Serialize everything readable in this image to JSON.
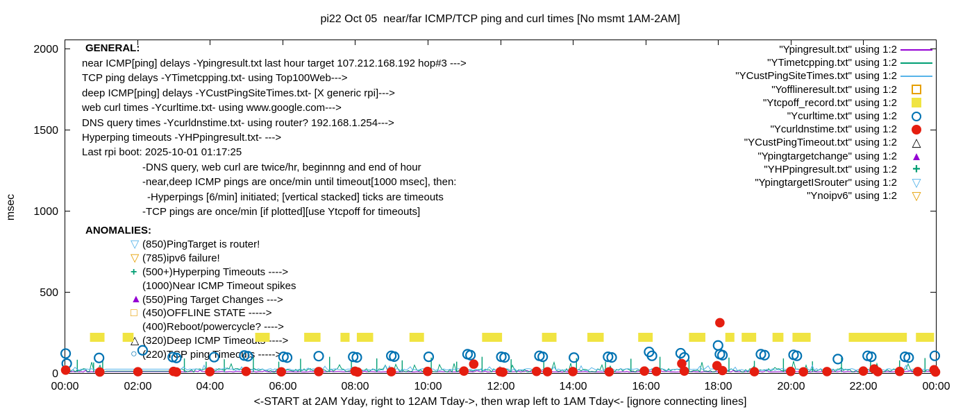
{
  "title": "pi22 Oct 05  near/far ICMP/TCP ping and curl times [No msmt 1AM-2AM]",
  "axes": {
    "ylabel": "msec",
    "xlabel": "<-START at 2AM Yday, right to 12AM Tday->, then wrap left to 1AM Tday<- [ignore connecting lines]",
    "x_ticks": [
      "00:00",
      "02:00",
      "04:00",
      "06:00",
      "08:00",
      "10:00",
      "12:00",
      "14:00",
      "16:00",
      "18:00",
      "20:00",
      "22:00",
      "00:00"
    ],
    "y_ticks": [
      "0",
      "500",
      "1000",
      "1500",
      "2000"
    ]
  },
  "general": {
    "header": "GENERAL:",
    "lines": [
      {
        "text": "near ICMP[ping] delays -Ypingresult.txt last hour target 107.212.168.192 hop#3 --->",
        "indent": 0
      },
      {
        "text": "TCP ping delays -YTimetcpping.txt- using Top100Web--->",
        "indent": 0
      },
      {
        "text": "deep ICMP[ping] delays -YCustPingSiteTimes.txt- [X generic rpi]--->",
        "indent": 0
      },
      {
        "text": "web curl times -Ycurltime.txt- using www.google.com--->",
        "indent": 0
      },
      {
        "text": "DNS query times -Ycurldnstime.txt- using router? 192.168.1.254--->",
        "indent": 0
      },
      {
        "text": "Hyperping timeouts -YHPpingresult.txt- --->",
        "indent": 0
      },
      {
        "text": "Last rpi boot: 2025-10-01 01:17:25",
        "indent": 0
      },
      {
        "text": "-DNS query, web curl are twice/hr, beginnng and end of hour",
        "indent": 1
      },
      {
        "text": "-near,deep ICMP pings are once/min until timeout[1000 msec], then:",
        "indent": 1
      },
      {
        "text": "-Hyperpings [6/min] initiated; [vertical stacked] ticks are timeouts",
        "indent": 2
      },
      {
        "text": "-TCP pings are once/min [if plotted][use Ytcpoff for timeouts]",
        "indent": 1
      }
    ]
  },
  "anomalies": {
    "header": "ANOMALIES:",
    "rows": [
      {
        "glyph": "▽",
        "glyph_name": "tridown-open-icon",
        "color": "#56b4e9",
        "cls": "s-glyph",
        "text": "(850)PingTarget is router!"
      },
      {
        "glyph": "▽",
        "glyph_name": "tridown-open-icon",
        "color": "#e69f00",
        "cls": "s-glyph",
        "text": "(785)ipv6 failure!"
      },
      {
        "glyph": "+",
        "glyph_name": "cross-icon",
        "color": "#009e73",
        "cls": "s-cross",
        "text": "(500+)Hyperping Timeouts ---->"
      },
      {
        "glyph": "",
        "glyph_name": "",
        "color": "",
        "cls": "s-glyph",
        "text": "(1000)Near ICMP Timeout spikes"
      },
      {
        "glyph": "▲",
        "glyph_name": "triangle-filled-icon",
        "color": "#9400d3",
        "cls": "s-glyph",
        "text": "(550)Ping Target Changes --->"
      },
      {
        "glyph": "□",
        "glyph_name": "square-open-icon",
        "color": "#e69f00",
        "cls": "s-glyph",
        "text": "(450)OFFLINE STATE ----->"
      },
      {
        "glyph": "",
        "glyph_name": "",
        "color": "",
        "cls": "s-glyph",
        "text": "(400)Reboot/powercycle? ---->"
      },
      {
        "glyph": "△",
        "glyph_name": "triangle-open-icon",
        "color": "#000000",
        "cls": "s-glyph",
        "text": "(320)Deep ICMP Timeouts ---->"
      },
      {
        "glyph": "○",
        "glyph_name": "circle-open-icon",
        "color": "#0072b2",
        "cls": "s-glyph",
        "text": "(220)TCP ping Timeouts ----->"
      }
    ]
  },
  "legend": {
    "items": [
      {
        "label": "\"Ypingresult.txt\" using 1:2",
        "sample": "line",
        "color": "#9400d3"
      },
      {
        "label": "\"YTimetcpping.txt\" using 1:2",
        "sample": "line",
        "color": "#009e73"
      },
      {
        "label": "\"YCustPingSiteTimes.txt\" using 1:2",
        "sample": "line",
        "color": "#56b4e9"
      },
      {
        "label": "\"Yofflineresult.txt\" using 1:2",
        "sample": "square-open",
        "color": "#e69f00"
      },
      {
        "label": "\"Ytcpoff_record.txt\" using 1:2",
        "sample": "square-filled",
        "color": "#f0e442"
      },
      {
        "label": "\"Ycurltime.txt\" using 1:2",
        "sample": "circle-open",
        "color": "#0072b2"
      },
      {
        "label": "\"Ycurldnstime.txt\" using 1:2",
        "sample": "circle-filled",
        "color": "#e51e10"
      },
      {
        "label": "\"YCustPingTimeout.txt\" using 1:2",
        "sample": "triangle-open",
        "color": "#000000"
      },
      {
        "label": "\"Ypingtargetchange\" using 1:2",
        "sample": "triangle-filled",
        "color": "#9400d3"
      },
      {
        "label": "\"YHPpingresult.txt\" using 1:2",
        "sample": "cross",
        "color": "#009e73"
      },
      {
        "label": "\"YpingtargetISrouter\" using 1:2",
        "sample": "tridown-open",
        "color": "#56b4e9"
      },
      {
        "label": "\"Ynoipv6\" using 1:2",
        "sample": "tridown-open",
        "color": "#e69f00"
      }
    ]
  },
  "chart_data": {
    "type": "line",
    "title": "pi22 Oct 05  near/far ICMP/TCP ping and curl times [No msmt 1AM-2AM]",
    "xlabel": "<-START at 2AM Yday, right to 12AM Tday->, then wrap left to 1AM Tday<- [ignore connecting lines]",
    "ylabel": "msec",
    "x_unit": "hours-of-day",
    "xlim": [
      0,
      24
    ],
    "ylim": [
      0,
      2055
    ],
    "x_tick_hours": [
      0,
      2,
      4,
      6,
      8,
      10,
      12,
      14,
      16,
      18,
      20,
      22,
      24
    ],
    "y_tick_values": [
      0,
      500,
      1000,
      1500,
      2000
    ],
    "grid": false,
    "legend_position": "top-right-inside",
    "gap_hours": [
      1.1,
      3.05
    ],
    "series": [
      {
        "name": "Ypingresult.txt",
        "type": "noisy-line",
        "color": "#9400d3",
        "band_msec": [
          6,
          15
        ],
        "gap_value": 9,
        "seed": 42
      },
      {
        "name": "YTimetcpping.txt",
        "type": "noisy-line",
        "color": "#009e73",
        "band_msec": [
          5,
          55
        ],
        "gap_value": 12,
        "seed": 7,
        "spike_points": [
          [
            0.35,
            82
          ],
          [
            0.8,
            65
          ],
          [
            1.05,
            75
          ],
          [
            3.3,
            90
          ],
          [
            3.9,
            70
          ],
          [
            4.4,
            85
          ],
          [
            5.2,
            95
          ],
          [
            5.9,
            70
          ],
          [
            6.5,
            88
          ],
          [
            7.3,
            100
          ],
          [
            7.9,
            72
          ],
          [
            8.6,
            90
          ],
          [
            9.3,
            78
          ],
          [
            10.1,
            95
          ],
          [
            10.8,
            70
          ],
          [
            11.5,
            100
          ],
          [
            12.3,
            85
          ],
          [
            13.2,
            75
          ],
          [
            14.1,
            92
          ],
          [
            14.9,
            70
          ],
          [
            15.6,
            88
          ],
          [
            16.4,
            100
          ],
          [
            17.2,
            80
          ],
          [
            18.3,
            95
          ],
          [
            19.0,
            75
          ],
          [
            19.8,
            90
          ],
          [
            20.6,
            72
          ],
          [
            21.4,
            95
          ],
          [
            22.2,
            85
          ],
          [
            23.0,
            78
          ],
          [
            23.7,
            92
          ]
        ]
      },
      {
        "name": "YCustPingSiteTimes.txt",
        "type": "noisy-line",
        "color": "#56b4e9",
        "band_msec": [
          15,
          42
        ],
        "gap_value": 24,
        "seed": 99
      },
      {
        "name": "Yofflineresult.txt",
        "type": "points",
        "marker": "square-open",
        "color": "#e69f00",
        "points": []
      },
      {
        "name": "Ytcpoff_record.txt",
        "type": "segments",
        "marker": "square-filled",
        "color": "#f0e442",
        "value_msec": 220,
        "segments_hours": [
          [
            0.7,
            1.1
          ],
          [
            1.6,
            1.9
          ],
          [
            5.25,
            5.65
          ],
          [
            6.6,
            7.05
          ],
          [
            7.6,
            7.85
          ],
          [
            8.05,
            8.5
          ],
          [
            9.5,
            9.9
          ],
          [
            11.5,
            12.05
          ],
          [
            13.15,
            13.55
          ],
          [
            14.4,
            14.85
          ],
          [
            15.8,
            16.2
          ],
          [
            17.2,
            17.65
          ],
          [
            18.2,
            18.45
          ],
          [
            18.65,
            19.05
          ],
          [
            19.5,
            19.8
          ],
          [
            20.05,
            20.55
          ],
          [
            21.6,
            23.2
          ],
          [
            23.45,
            23.95
          ]
        ]
      },
      {
        "name": "Ycurltime.txt",
        "type": "points",
        "marker": "circle-open",
        "color": "#0072b2",
        "points": [
          [
            0.03,
            120
          ],
          [
            0.06,
            58
          ],
          [
            0.95,
            93
          ],
          [
            2.15,
            140
          ],
          [
            2.98,
            98
          ],
          [
            3.08,
            93
          ],
          [
            4.12,
            98
          ],
          [
            4.95,
            108
          ],
          [
            5.05,
            103
          ],
          [
            6.03,
            100
          ],
          [
            6.13,
            95
          ],
          [
            7.0,
            104
          ],
          [
            7.95,
            100
          ],
          [
            8.05,
            96
          ],
          [
            9.0,
            106
          ],
          [
            9.08,
            101
          ],
          [
            10.03,
            100
          ],
          [
            11.1,
            116
          ],
          [
            11.18,
            110
          ],
          [
            12.03,
            100
          ],
          [
            12.12,
            96
          ],
          [
            13.08,
            106
          ],
          [
            13.17,
            100
          ],
          [
            14.03,
            95
          ],
          [
            14.97,
            100
          ],
          [
            15.07,
            96
          ],
          [
            16.1,
            130
          ],
          [
            16.18,
            106
          ],
          [
            16.97,
            122
          ],
          [
            17.07,
            96
          ],
          [
            18.0,
            170
          ],
          [
            18.05,
            116
          ],
          [
            18.12,
            110
          ],
          [
            19.18,
            116
          ],
          [
            19.28,
            110
          ],
          [
            20.08,
            112
          ],
          [
            20.17,
            106
          ],
          [
            21.3,
            86
          ],
          [
            22.12,
            106
          ],
          [
            22.22,
            100
          ],
          [
            23.15,
            100
          ],
          [
            23.25,
            95
          ],
          [
            23.97,
            106
          ]
        ]
      },
      {
        "name": "Ycurldnstime.txt",
        "type": "points",
        "marker": "circle-filled",
        "color": "#e51e10",
        "points": [
          [
            0.03,
            18
          ],
          [
            0.97,
            6
          ],
          [
            2.02,
            8
          ],
          [
            3.0,
            10
          ],
          [
            3.08,
            6
          ],
          [
            4.0,
            8
          ],
          [
            5.0,
            10
          ],
          [
            5.97,
            7
          ],
          [
            7.0,
            9
          ],
          [
            8.0,
            11
          ],
          [
            8.07,
            6
          ],
          [
            9.0,
            8
          ],
          [
            10.0,
            10
          ],
          [
            11.0,
            12
          ],
          [
            11.27,
            55
          ],
          [
            12.0,
            8
          ],
          [
            12.07,
            5
          ],
          [
            13.0,
            10
          ],
          [
            13.3,
            8
          ],
          [
            14.0,
            9
          ],
          [
            15.0,
            7
          ],
          [
            15.97,
            12
          ],
          [
            16.3,
            10
          ],
          [
            17.0,
            58
          ],
          [
            17.07,
            12
          ],
          [
            17.97,
            45
          ],
          [
            18.05,
            310
          ],
          [
            18.12,
            15
          ],
          [
            19.0,
            8
          ],
          [
            20.0,
            10
          ],
          [
            20.35,
            7
          ],
          [
            21.0,
            9
          ],
          [
            22.0,
            12
          ],
          [
            22.3,
            25
          ],
          [
            22.4,
            8
          ],
          [
            23.0,
            10
          ],
          [
            23.5,
            9
          ],
          [
            23.95,
            20
          ],
          [
            23.99,
            6
          ]
        ]
      },
      {
        "name": "YCustPingTimeout.txt",
        "type": "points",
        "marker": "triangle-open",
        "color": "#000000",
        "points": []
      },
      {
        "name": "Ypingtargetchange",
        "type": "points",
        "marker": "triangle-filled",
        "color": "#9400d3",
        "points": []
      },
      {
        "name": "YHPpingresult.txt",
        "type": "points",
        "marker": "cross",
        "color": "#009e73",
        "points": []
      },
      {
        "name": "YpingtargetISrouter",
        "type": "points",
        "marker": "tridown-open",
        "color": "#56b4e9",
        "points": []
      },
      {
        "name": "Ynoipv6",
        "type": "points",
        "marker": "tridown-open",
        "color": "#e69f00",
        "points": []
      }
    ]
  }
}
